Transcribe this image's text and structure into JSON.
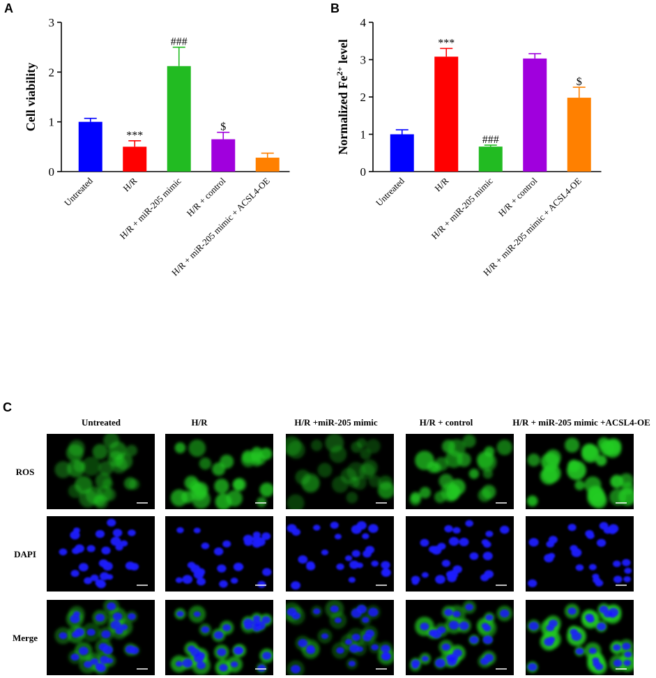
{
  "panels": {
    "A": "A",
    "B": "B",
    "C": "C"
  },
  "chart_data": [
    {
      "type": "bar",
      "panel": "A",
      "ylabel": "Cell viability",
      "ylim": [
        0,
        3
      ],
      "yticks": [
        "0",
        "1",
        "2",
        "3"
      ],
      "categories": [
        "Untreated",
        "H/R",
        "H/R + miR-205 mimic",
        "H/R + control",
        "H/R + miR-205 mimic + ACSL4-OE"
      ],
      "values": [
        1.0,
        0.5,
        2.12,
        0.65,
        0.28
      ],
      "errors": [
        0.07,
        0.12,
        0.38,
        0.14,
        0.09
      ],
      "colors": [
        "#0000ff",
        "#ff0000",
        "#22bb22",
        "#a000dd",
        "#ff8000"
      ],
      "annotations": [
        "",
        "***",
        "###",
        "$",
        ""
      ]
    },
    {
      "type": "bar",
      "panel": "B",
      "ylabel_main": "Normalized Fe",
      "ylabel_sup": "2+",
      "ylabel_tail": " level",
      "ylim": [
        0,
        4
      ],
      "yticks": [
        "0",
        "1",
        "2",
        "3",
        "4"
      ],
      "categories": [
        "Untreated",
        "H/R",
        "H/R + miR-205 mimic",
        "H/R + control",
        "H/R + miR-205 mimic + ACSL4-OE"
      ],
      "values": [
        1.0,
        3.08,
        0.67,
        3.03,
        1.98
      ],
      "errors": [
        0.12,
        0.22,
        0.04,
        0.13,
        0.28
      ],
      "colors": [
        "#0000ff",
        "#ff0000",
        "#22bb22",
        "#a000dd",
        "#ff8000"
      ],
      "annotations": [
        "",
        "***",
        "###",
        "",
        "$"
      ]
    }
  ],
  "microscopy": {
    "columns": [
      "Untreated",
      "H/R",
      "H/R +miR-205 mimic",
      "H/R + control",
      "H/R + miR-205 mimic +ACSL4-OE"
    ],
    "rows": [
      "ROS",
      "DAPI",
      "Merge"
    ],
    "ros_intensity": [
      0.55,
      0.85,
      0.45,
      0.8,
      0.95
    ],
    "colors": {
      "ros": "#22cc22",
      "dapi": "#1a1aff",
      "background": "#000000"
    }
  }
}
